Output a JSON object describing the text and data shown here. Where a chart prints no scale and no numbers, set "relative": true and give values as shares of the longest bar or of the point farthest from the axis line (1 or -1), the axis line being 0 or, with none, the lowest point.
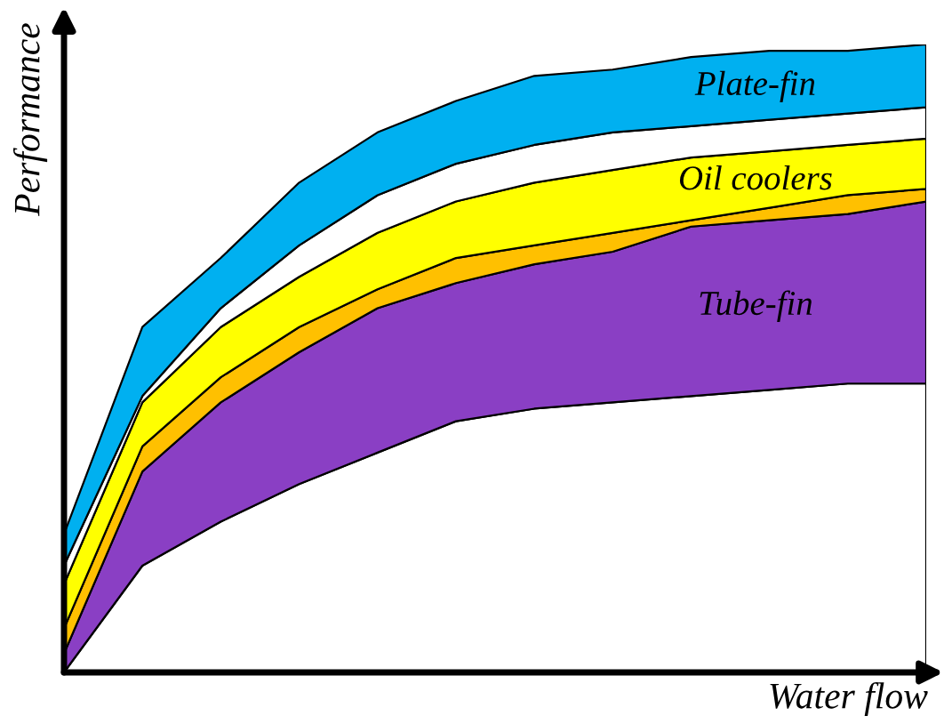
{
  "chart_data": {
    "type": "area",
    "relative": true,
    "stacked": true,
    "xlabel": "Water flow",
    "ylabel": "Performance",
    "legend": false,
    "categories": [
      null,
      null,
      null,
      null,
      null,
      null,
      null,
      null,
      null,
      null,
      null,
      null
    ],
    "series": [
      {
        "color": "#ffffff",
        "values": [
          0.0,
          0.17,
          0.24,
          0.3,
          0.35,
          0.4,
          0.42,
          0.43,
          0.44,
          0.45,
          0.46,
          0.46
        ]
      },
      {
        "name": "Tube-fin",
        "color": "#8a3fc4",
        "values": [
          0.03,
          0.15,
          0.19,
          0.21,
          0.23,
          0.22,
          0.23,
          0.24,
          0.27,
          0.27,
          0.27,
          0.29
        ]
      },
      {
        "color": "#ffc000",
        "values": [
          0.04,
          0.04,
          0.04,
          0.04,
          0.03,
          0.04,
          0.03,
          0.03,
          0.01,
          0.02,
          0.03,
          0.02
        ]
      },
      {
        "name": "Oil coolers",
        "color": "#ffff00",
        "values": [
          0.07,
          0.07,
          0.08,
          0.08,
          0.09,
          0.09,
          0.1,
          0.1,
          0.1,
          0.09,
          0.08,
          0.08
        ]
      },
      {
        "color": "#ffffff",
        "values": [
          0.03,
          0.01,
          0.03,
          0.05,
          0.06,
          0.06,
          0.06,
          0.06,
          0.05,
          0.05,
          0.05,
          0.05
        ]
      },
      {
        "name": "Plate-fin",
        "color": "#00b0f0",
        "values": [
          0.05,
          0.11,
          0.08,
          0.1,
          0.1,
          0.1,
          0.11,
          0.1,
          0.11,
          0.11,
          0.1,
          0.1
        ]
      }
    ]
  }
}
